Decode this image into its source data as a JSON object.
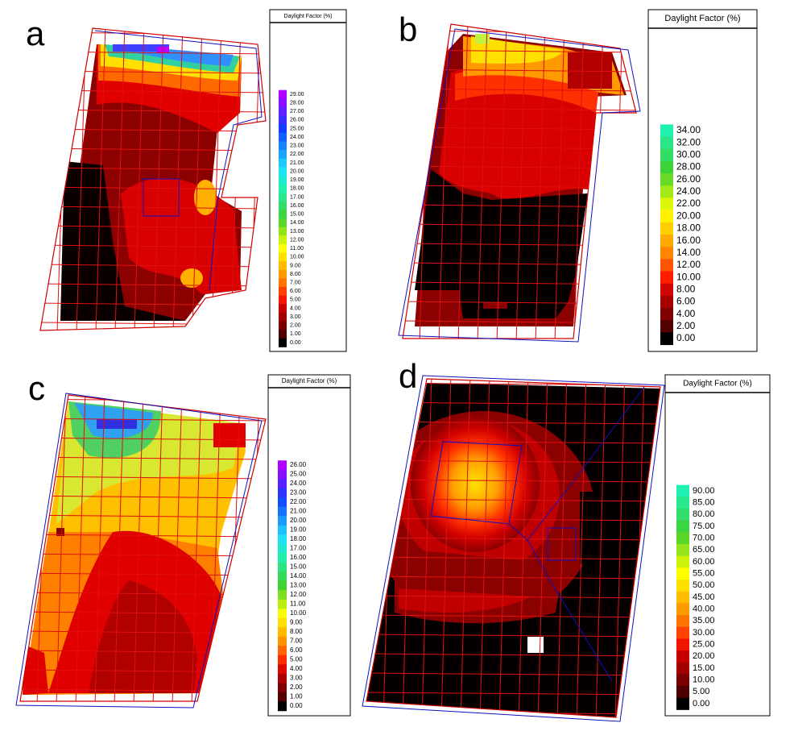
{
  "panels": [
    {
      "label": "a",
      "legend": {
        "title": "Daylight Factor (%)",
        "labels": [
          "29.00",
          "28.00",
          "27.00",
          "26.00",
          "25.00",
          "24.00",
          "23.00",
          "22.00",
          "21.00",
          "20.00",
          "19.00",
          "18.00",
          "17.00",
          "16.00",
          "15.00",
          "14.00",
          "13.00",
          "12.00",
          "11.00",
          "10.00",
          "9.00",
          "8.00",
          "7.00",
          "6.00",
          "5.00",
          "4.00",
          "3.00",
          "2.00",
          "1.00",
          "0.00"
        ]
      }
    },
    {
      "label": "b",
      "legend": {
        "title": "Daylight Factor (%)",
        "labels": [
          "34.00",
          "32.00",
          "30.00",
          "28.00",
          "26.00",
          "24.00",
          "22.00",
          "20.00",
          "18.00",
          "16.00",
          "14.00",
          "12.00",
          "10.00",
          "8.00",
          "6.00",
          "4.00",
          "2.00",
          "0.00"
        ]
      }
    },
    {
      "label": "c",
      "legend": {
        "title": "Daylight Factor (%)",
        "labels": [
          "26.00",
          "25.00",
          "24.00",
          "23.00",
          "22.00",
          "21.00",
          "20.00",
          "19.00",
          "18.00",
          "17.00",
          "16.00",
          "15.00",
          "14.00",
          "13.00",
          "12.00",
          "11.00",
          "10.00",
          "9.00",
          "8.00",
          "7.00",
          "6.00",
          "5.00",
          "4.00",
          "3.00",
          "2.00",
          "1.00",
          "0.00"
        ]
      }
    },
    {
      "label": "d",
      "legend": {
        "title": "Daylight Factor (%)",
        "labels": [
          "90.00",
          "85.00",
          "80.00",
          "75.00",
          "70.00",
          "65.00",
          "60.00",
          "55.00",
          "50.00",
          "45.00",
          "40.00",
          "35.00",
          "30.00",
          "25.00",
          "20.00",
          "15.00",
          "10.00",
          "5.00",
          "0.00"
        ]
      }
    }
  ]
}
